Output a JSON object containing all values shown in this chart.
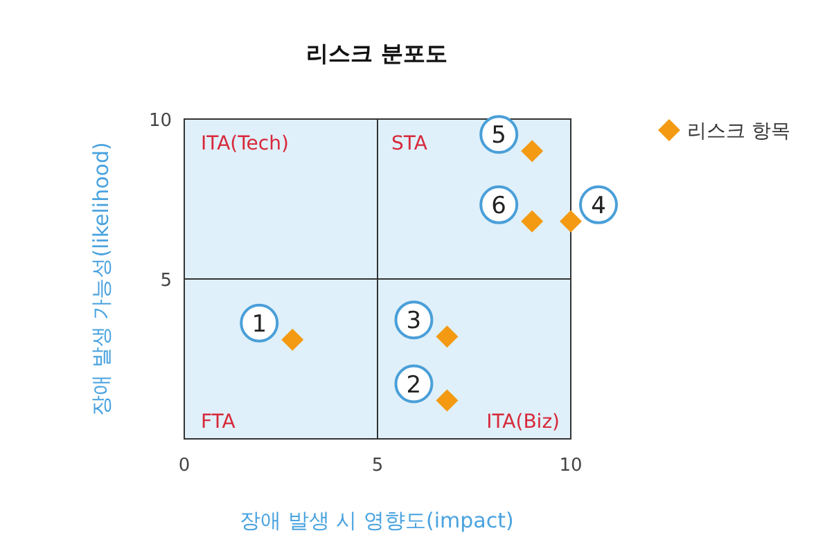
{
  "chart_data": {
    "type": "scatter",
    "title": "리스크 분포도",
    "xlabel": "장애 발생 시 영향도(impact)",
    "ylabel": "장애 발생 가능성(likelihood)",
    "xlim": [
      0,
      10
    ],
    "ylim": [
      0,
      10
    ],
    "xticks": [
      0,
      5,
      10
    ],
    "yticks": [
      5,
      10
    ],
    "grid": true,
    "legend": "top right",
    "marker": "diamond",
    "x": [
      2.8,
      6.8,
      6.8,
      9.0,
      10.0,
      9.0
    ],
    "series": [
      {
        "name": "리스크 항목",
        "color": "#f39a12",
        "values": [
          3.1,
          1.2,
          3.2,
          6.8,
          6.8,
          9.0
        ]
      }
    ],
    "annotations": [
      "ITA(Tech)",
      "STA",
      "FTA",
      "ITA(Biz)",
      {
        "text": "1",
        "x": 2.8,
        "y": 3.1
      },
      {
        "text": "2",
        "x": 6.8,
        "y": 1.2
      },
      {
        "text": "3",
        "x": 6.8,
        "y": 3.2
      },
      {
        "text": "6",
        "x": 9.0,
        "y": 6.8
      },
      {
        "text": "4",
        "x": 10.0,
        "y": 6.8
      },
      {
        "text": "5",
        "x": 9.0,
        "y": 9.0
      }
    ]
  }
}
